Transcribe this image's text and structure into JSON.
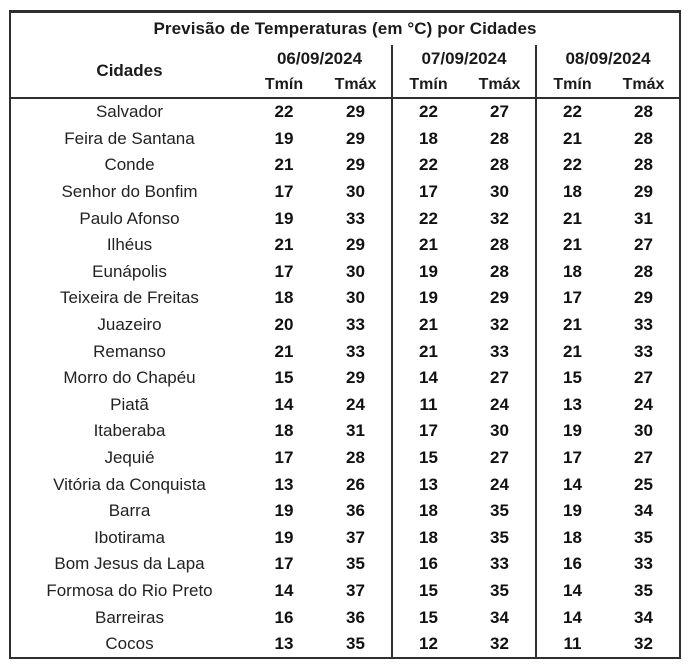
{
  "chart_data": {
    "type": "table",
    "title": "Previsão de Temperaturas (em °C) por Cidades",
    "header": {
      "city_column": "Cidades",
      "date_columns": [
        "06/09/2024",
        "07/09/2024",
        "08/09/2024"
      ],
      "sub_columns": [
        "Tmín",
        "Tmáx"
      ]
    },
    "rows": [
      {
        "city": "Salvador",
        "temps": [
          22,
          29,
          22,
          27,
          22,
          28
        ]
      },
      {
        "city": "Feira de Santana",
        "temps": [
          19,
          29,
          18,
          28,
          21,
          28
        ]
      },
      {
        "city": "Conde",
        "temps": [
          21,
          29,
          22,
          28,
          22,
          28
        ]
      },
      {
        "city": "Senhor do Bonfim",
        "temps": [
          17,
          30,
          17,
          30,
          18,
          29
        ]
      },
      {
        "city": "Paulo Afonso",
        "temps": [
          19,
          33,
          22,
          32,
          21,
          31
        ]
      },
      {
        "city": "Ilhéus",
        "temps": [
          21,
          29,
          21,
          28,
          21,
          27
        ]
      },
      {
        "city": "Eunápolis",
        "temps": [
          17,
          30,
          19,
          28,
          18,
          28
        ]
      },
      {
        "city": "Teixeira de Freitas",
        "temps": [
          18,
          30,
          19,
          29,
          17,
          29
        ]
      },
      {
        "city": "Juazeiro",
        "temps": [
          20,
          33,
          21,
          32,
          21,
          33
        ]
      },
      {
        "city": "Remanso",
        "temps": [
          21,
          33,
          21,
          33,
          21,
          33
        ]
      },
      {
        "city": "Morro do Chapéu",
        "temps": [
          15,
          29,
          14,
          27,
          15,
          27
        ]
      },
      {
        "city": "Piatã",
        "temps": [
          14,
          24,
          11,
          24,
          13,
          24
        ]
      },
      {
        "city": "Itaberaba",
        "temps": [
          18,
          31,
          17,
          30,
          19,
          30
        ]
      },
      {
        "city": "Jequié",
        "temps": [
          17,
          28,
          15,
          27,
          17,
          27
        ]
      },
      {
        "city": "Vitória da Conquista",
        "temps": [
          13,
          26,
          13,
          24,
          14,
          25
        ]
      },
      {
        "city": "Barra",
        "temps": [
          19,
          36,
          18,
          35,
          19,
          34
        ]
      },
      {
        "city": "Ibotirama",
        "temps": [
          19,
          37,
          18,
          35,
          18,
          35
        ]
      },
      {
        "city": "Bom Jesus da Lapa",
        "temps": [
          17,
          35,
          16,
          33,
          16,
          33
        ]
      },
      {
        "city": "Formosa do Rio Preto",
        "temps": [
          14,
          37,
          15,
          35,
          14,
          35
        ]
      },
      {
        "city": "Barreiras",
        "temps": [
          16,
          36,
          15,
          34,
          14,
          34
        ]
      },
      {
        "city": "Cocos",
        "temps": [
          13,
          35,
          12,
          32,
          11,
          32
        ]
      }
    ]
  },
  "colors": {
    "background": "#ffffff",
    "text": "#1a1a1a",
    "border": "#2e2e2e"
  }
}
